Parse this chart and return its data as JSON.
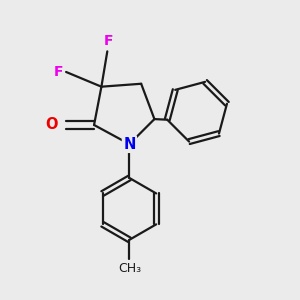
{
  "bg_color": "#ebebeb",
  "line_color": "#1a1a1a",
  "atom_colors": {
    "N": "#0000ee",
    "O": "#ee0000",
    "F": "#ee00ee",
    "C": "#1a1a1a"
  },
  "line_width": 1.6,
  "font_size_atom": 10.5
}
